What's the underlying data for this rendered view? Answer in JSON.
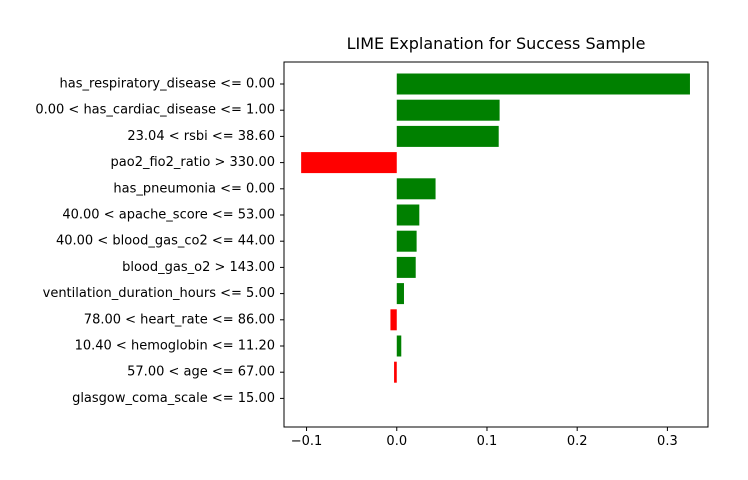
{
  "chart_data": {
    "type": "bar",
    "orientation": "horizontal",
    "title": "LIME Explanation for Success Sample",
    "xlabel": "",
    "ylabel": "",
    "xlim": [
      -0.125,
      0.345
    ],
    "xticks": [
      -0.1,
      0.0,
      0.1,
      0.2,
      0.3
    ],
    "xtick_labels": [
      "−0.1",
      "0.0",
      "0.1",
      "0.2",
      "0.3"
    ],
    "grid": false,
    "categories": [
      "has_respiratory_disease <= 0.00",
      "0.00 < has_cardiac_disease <= 1.00",
      "23.04 < rsbi <= 38.60",
      "pao2_fio2_ratio > 330.00",
      "has_pneumonia <= 0.00",
      "40.00 < apache_score <= 53.00",
      "40.00 < blood_gas_co2 <= 44.00",
      "blood_gas_o2 > 143.00",
      "ventilation_duration_hours <= 5.00",
      "78.00 < heart_rate <= 86.00",
      "10.40 < hemoglobin <= 11.20",
      "57.00 < age <= 67.00",
      "glasgow_coma_scale <= 15.00"
    ],
    "values": [
      0.325,
      0.114,
      0.113,
      -0.106,
      0.043,
      0.025,
      0.022,
      0.021,
      0.008,
      -0.007,
      0.005,
      -0.003,
      0.0
    ],
    "colors": {
      "positive": "#008000",
      "negative": "#ff0000"
    }
  }
}
